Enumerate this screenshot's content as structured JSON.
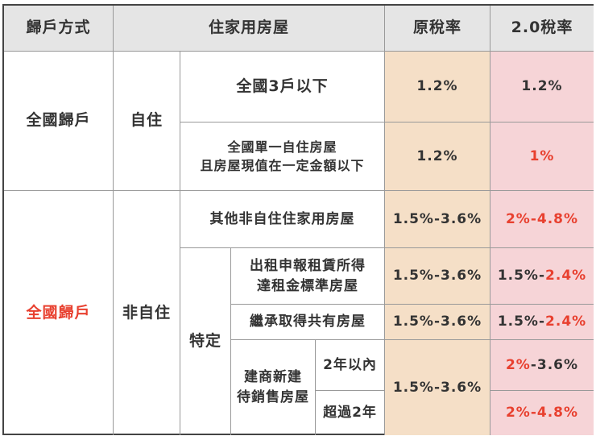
{
  "header": {
    "col1": "歸戶方式",
    "col2": "住家用房屋",
    "col3": "原稅率",
    "col4": "2.0稅率"
  },
  "group1": {
    "scope": "全國歸戶",
    "use": "自住",
    "rows": [
      {
        "label": "全國3戶以下",
        "original": "1.2%",
        "new": "1.2%"
      },
      {
        "label_line1": "全國單一自住房屋",
        "label_line2": "且房屋現值在一定金額以下",
        "original": "1.2%",
        "new": "1%"
      }
    ]
  },
  "group2": {
    "scope": "全國歸戶",
    "use": "非自住",
    "other": {
      "label": "其他非自住住家用房屋",
      "original": "1.5%-3.6%",
      "new": "2%-4.8%"
    },
    "specific_label": "特定",
    "rent": {
      "label_line1": "出租申報租賃所得",
      "label_line2": "達租金標準房屋",
      "original": "1.5%-3.6%",
      "new_black": "1.5%-",
      "new_red": "2.4%"
    },
    "inherit": {
      "label": "繼承取得共有房屋",
      "original": "1.5%-3.6%",
      "new_black": "1.5%-",
      "new_red": "2.4%"
    },
    "builder": {
      "label_line1": "建商新建",
      "label_line2": "待銷售房屋",
      "original": "1.5%-3.6%",
      "within2": {
        "label": "2年以內",
        "new_red": "2%",
        "new_black": "-3.6%"
      },
      "over2": {
        "label": "超過2年",
        "new": "2%-4.8%"
      }
    }
  },
  "colors": {
    "header_bg": "#e5e5e5",
    "original_bg": "#f5dfc7",
    "new_bg": "#f6d4d7",
    "highlight": "#e8402f"
  }
}
